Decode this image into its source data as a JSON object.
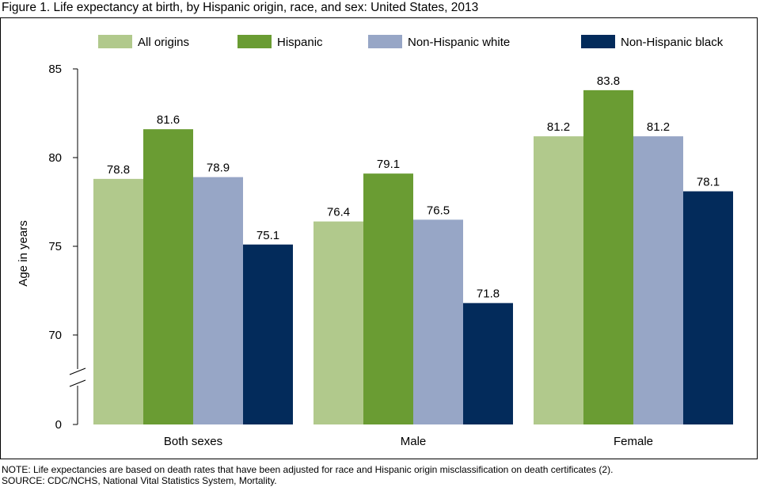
{
  "title": "Figure 1. Life expectancy at birth, by Hispanic origin, race, and sex: United States, 2013",
  "notes": {
    "note": "NOTE: Life expectancies are based on death rates that have been adjusted for race and Hispanic origin misclassification on death certificates (2).",
    "source": "SOURCE: CDC/NCHS, National Vital Statistics System, Mortality."
  },
  "chart_data": {
    "type": "bar",
    "title": "Figure 1. Life expectancy at birth, by Hispanic origin, race, and sex: United States, 2013",
    "xlabel": "",
    "ylabel": "Age in years",
    "categories": [
      "Both sexes",
      "Male",
      "Female"
    ],
    "series": [
      {
        "name": "All origins",
        "color": "#b1c98c",
        "values": [
          78.8,
          76.4,
          81.2
        ]
      },
      {
        "name": "Hispanic",
        "color": "#6a9c33",
        "values": [
          81.6,
          79.1,
          83.8
        ]
      },
      {
        "name": "Non-Hispanic white",
        "color": "#97a6c6",
        "values": [
          78.9,
          76.5,
          81.2
        ]
      },
      {
        "name": "Non-Hispanic black",
        "color": "#032b5b",
        "values": [
          75.1,
          71.8,
          78.1
        ]
      }
    ],
    "data_labels": [
      [
        "78.8",
        "76.4",
        "81.2"
      ],
      [
        "81.6",
        "79.1",
        "83.8"
      ],
      [
        "78.9",
        "76.5",
        "81.2"
      ],
      [
        "75.1",
        "71.8",
        "78.1"
      ]
    ],
    "yticks": [
      {
        "label": "85",
        "value": 85
      },
      {
        "label": "80",
        "value": 80
      },
      {
        "label": "75",
        "value": 75
      },
      {
        "label": "70",
        "value": 70
      },
      {
        "label": "0",
        "value": 0
      }
    ],
    "ylim": [
      0,
      85
    ],
    "axis_break": true,
    "grid": false,
    "legend": "top"
  }
}
